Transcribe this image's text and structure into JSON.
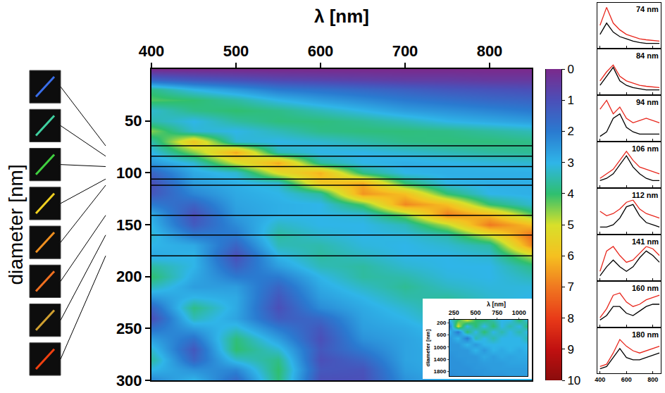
{
  "chart_data": [
    {
      "type": "heatmap",
      "x_label": "λ [nm]",
      "y_label": "diameter [nm]",
      "x": [
        400,
        450,
        500,
        550,
        600,
        650,
        700,
        750,
        800,
        850
      ],
      "y": [
        0,
        10,
        20,
        30,
        40,
        50,
        60,
        70,
        80,
        90,
        100,
        110,
        120,
        130,
        140,
        150,
        160,
        170,
        180,
        190,
        200,
        210,
        220,
        230,
        240,
        250,
        260,
        270,
        280,
        290,
        300
      ],
      "z": [
        [
          0,
          0,
          0,
          0,
          0,
          0,
          0,
          0,
          0,
          0
        ],
        [
          1.5,
          1.2,
          1.0,
          0.8,
          0.7,
          0.6,
          0.5,
          0.5,
          0.4,
          0.4
        ],
        [
          3.8,
          3.0,
          2.5,
          2.0,
          1.8,
          1.6,
          1.4,
          1.2,
          1.1,
          1.0
        ],
        [
          4.2,
          4.0,
          3.6,
          3.0,
          2.6,
          2.3,
          2.0,
          1.8,
          1.6,
          1.5
        ],
        [
          3.2,
          3.8,
          4.0,
          3.8,
          3.4,
          3.0,
          2.6,
          2.4,
          2.2,
          2.0
        ],
        [
          3.5,
          3.0,
          3.6,
          3.9,
          3.9,
          3.7,
          3.4,
          3.0,
          2.8,
          2.6
        ],
        [
          4.5,
          3.2,
          3.0,
          3.4,
          3.8,
          3.9,
          3.9,
          3.8,
          3.6,
          3.4
        ],
        [
          3.5,
          5.8,
          3.2,
          3.0,
          3.2,
          3.5,
          3.8,
          3.9,
          3.9,
          3.8
        ],
        [
          3.0,
          4.5,
          6.3,
          3.4,
          3.0,
          3.0,
          3.2,
          3.4,
          3.6,
          3.7
        ],
        [
          2.5,
          3.2,
          5.0,
          6.3,
          3.6,
          3.0,
          2.9,
          3.0,
          3.1,
          3.2
        ],
        [
          1.5,
          2.8,
          3.2,
          5.2,
          6.2,
          3.8,
          3.0,
          2.9,
          2.9,
          2.9
        ],
        [
          1.0,
          2.6,
          2.9,
          3.2,
          5.8,
          6.3,
          4.0,
          3.0,
          2.9,
          2.9
        ],
        [
          1.2,
          2.2,
          2.8,
          3.0,
          3.6,
          6.6,
          6.0,
          4.0,
          3.0,
          2.9
        ],
        [
          2.0,
          1.5,
          2.7,
          2.9,
          3.0,
          4.2,
          6.8,
          6.0,
          4.0,
          3.2
        ],
        [
          2.8,
          1.0,
          2.6,
          2.9,
          3.0,
          3.2,
          4.5,
          6.9,
          6.0,
          4.2
        ],
        [
          3.0,
          1.3,
          2.3,
          3.3,
          3.0,
          3.0,
          3.4,
          4.8,
          7.0,
          6.0
        ],
        [
          3.2,
          2.0,
          2.0,
          3.6,
          3.2,
          3.0,
          3.1,
          3.5,
          5.0,
          7.2
        ],
        [
          3.0,
          2.8,
          1.5,
          3.4,
          3.5,
          3.1,
          3.0,
          3.2,
          3.6,
          6.8
        ],
        [
          2.8,
          3.0,
          1.0,
          3.0,
          3.6,
          3.3,
          3.0,
          3.0,
          3.2,
          4.8
        ],
        [
          3.6,
          3.0,
          1.4,
          2.6,
          3.4,
          3.6,
          3.2,
          3.0,
          3.0,
          3.8
        ],
        [
          4.0,
          2.8,
          2.0,
          2.0,
          3.0,
          3.6,
          3.5,
          3.1,
          3.0,
          3.4
        ],
        [
          3.4,
          2.6,
          2.6,
          1.5,
          2.8,
          3.3,
          3.7,
          3.3,
          3.1,
          3.1
        ],
        [
          2.5,
          3.0,
          2.8,
          1.2,
          2.6,
          3.0,
          3.5,
          3.6,
          3.2,
          3.0
        ],
        [
          1.5,
          3.8,
          2.8,
          1.0,
          2.3,
          2.8,
          3.2,
          3.7,
          3.4,
          3.0
        ],
        [
          1.0,
          3.4,
          2.7,
          1.3,
          1.6,
          2.7,
          3.0,
          3.5,
          3.7,
          3.2
        ],
        [
          1.8,
          2.6,
          3.2,
          2.0,
          1.2,
          2.6,
          2.8,
          3.2,
          3.7,
          3.5
        ],
        [
          2.6,
          1.8,
          3.9,
          2.6,
          1.0,
          2.4,
          2.7,
          3.0,
          3.4,
          3.7
        ],
        [
          3.2,
          1.2,
          4.0,
          3.2,
          1.2,
          2.0,
          2.7,
          2.9,
          3.1,
          3.6
        ],
        [
          3.6,
          1.5,
          3.2,
          3.8,
          1.0,
          1.5,
          2.7,
          2.9,
          3.0,
          3.3
        ],
        [
          3.0,
          2.4,
          2.2,
          4.0,
          1.2,
          1.1,
          2.6,
          2.9,
          3.0,
          3.1
        ],
        [
          2.2,
          3.0,
          1.6,
          3.9,
          1.0,
          1.0,
          2.4,
          2.8,
          2.9,
          3.0
        ]
      ],
      "xlim": [
        400,
        850
      ],
      "xticks": [
        400,
        500,
        600,
        700,
        800
      ],
      "ylim": [
        300,
        0
      ],
      "yticks": [
        50,
        100,
        150,
        200,
        250,
        300
      ],
      "colorbar": {
        "range": [
          0,
          10
        ],
        "ticks": [
          0,
          1,
          2,
          3,
          4,
          5,
          6,
          7,
          8,
          9,
          10
        ]
      },
      "horizontal_lines": [
        74,
        84,
        94,
        106,
        112,
        141,
        160,
        180
      ]
    },
    {
      "type": "heatmap",
      "x_label": "λ [nm]",
      "y_label": "diameter [nm]",
      "x": [
        200,
        300,
        400,
        500,
        600,
        700,
        800,
        900,
        1000,
        1100
      ],
      "y": [
        100,
        300,
        500,
        700,
        900,
        1100,
        1300,
        1500,
        1700,
        1900
      ],
      "z": [
        [
          3,
          4,
          5,
          4,
          4,
          3.5,
          3,
          3,
          4,
          3
        ],
        [
          2,
          5,
          3,
          4,
          3,
          4,
          3,
          3.5,
          3,
          4
        ],
        [
          3,
          2,
          4,
          3,
          4,
          3,
          3.5,
          3,
          3.5,
          3
        ],
        [
          2.5,
          3,
          2,
          3.5,
          3,
          3.5,
          3,
          3,
          3,
          3.5
        ],
        [
          2.5,
          2.5,
          3,
          2.5,
          3,
          3,
          3,
          3,
          3,
          3
        ],
        [
          2.5,
          2.5,
          2.5,
          3,
          2.5,
          3,
          2.8,
          3,
          2.8,
          3
        ],
        [
          2.4,
          2.5,
          2.5,
          2.5,
          2.8,
          2.6,
          2.8,
          2.7,
          2.8,
          2.8
        ],
        [
          2.4,
          2.4,
          2.5,
          2.5,
          2.6,
          2.6,
          2.6,
          2.7,
          2.7,
          2.7
        ],
        [
          2.4,
          2.4,
          2.4,
          2.5,
          2.5,
          2.6,
          2.6,
          2.6,
          2.6,
          2.6
        ],
        [
          2.3,
          2.4,
          2.4,
          2.4,
          2.5,
          2.5,
          2.5,
          2.6,
          2.6,
          2.6
        ]
      ],
      "xlim": [
        200,
        1100
      ],
      "xticks": [
        250,
        500,
        750,
        1000
      ],
      "ylim": [
        1950,
        100
      ],
      "yticks": [
        200,
        600,
        1000,
        1400,
        1800
      ]
    },
    {
      "type": "line",
      "title": "74 nm",
      "x": [
        400,
        450,
        500,
        550,
        600,
        650,
        700,
        750,
        800,
        850
      ],
      "series": [
        {
          "color": "#e8261c",
          "values": [
            0.5,
            0.9,
            0.55,
            0.4,
            0.3,
            0.25,
            0.2,
            0.18,
            0.16,
            0.15
          ]
        },
        {
          "color": "#000000",
          "values": [
            0.3,
            0.55,
            0.35,
            0.25,
            0.2,
            0.15,
            0.12,
            0.1,
            0.1,
            0.1
          ]
        }
      ],
      "xlim": [
        380,
        860
      ],
      "xticks": [
        400,
        600,
        800
      ],
      "ylim": [
        0,
        1
      ],
      "tick_labels": false
    },
    {
      "type": "line",
      "title": "84 nm",
      "x": [
        400,
        450,
        500,
        550,
        600,
        650,
        700,
        750,
        800,
        850
      ],
      "series": [
        {
          "color": "#e8261c",
          "values": [
            0.3,
            0.5,
            0.65,
            0.4,
            0.3,
            0.25,
            0.2,
            0.18,
            0.16,
            0.15
          ]
        },
        {
          "color": "#000000",
          "values": [
            0.2,
            0.4,
            0.6,
            0.3,
            0.2,
            0.15,
            0.12,
            0.1,
            0.1,
            0.1
          ]
        }
      ],
      "xlim": [
        380,
        860
      ],
      "xticks": [
        400,
        600,
        800
      ],
      "ylim": [
        0,
        1
      ],
      "tick_labels": false
    },
    {
      "type": "line",
      "title": "94 nm",
      "x": [
        400,
        450,
        500,
        550,
        600,
        650,
        700,
        750,
        800,
        850
      ],
      "series": [
        {
          "color": "#e8261c",
          "values": [
            0.7,
            0.9,
            0.6,
            0.75,
            0.5,
            0.4,
            0.45,
            0.5,
            0.45,
            0.4
          ]
        },
        {
          "color": "#000000",
          "values": [
            0.1,
            0.2,
            0.5,
            0.6,
            0.3,
            0.2,
            0.15,
            0.15,
            0.15,
            0.15
          ]
        }
      ],
      "xlim": [
        380,
        860
      ],
      "xticks": [
        400,
        600,
        800
      ],
      "ylim": [
        0,
        1
      ],
      "tick_labels": false
    },
    {
      "type": "line",
      "title": "106 nm",
      "x": [
        400,
        450,
        500,
        550,
        600,
        650,
        700,
        750,
        800,
        850
      ],
      "series": [
        {
          "color": "#e8261c",
          "values": [
            0.2,
            0.3,
            0.4,
            0.6,
            0.8,
            0.6,
            0.45,
            0.4,
            0.35,
            0.3
          ]
        },
        {
          "color": "#000000",
          "values": [
            0.15,
            0.2,
            0.3,
            0.5,
            0.7,
            0.45,
            0.3,
            0.2,
            0.15,
            0.15
          ]
        }
      ],
      "xlim": [
        380,
        860
      ],
      "xticks": [
        400,
        600,
        800
      ],
      "ylim": [
        0,
        1
      ],
      "tick_labels": false
    },
    {
      "type": "line",
      "title": "112 nm",
      "x": [
        400,
        450,
        500,
        550,
        600,
        650,
        700,
        750,
        800,
        850
      ],
      "series": [
        {
          "color": "#e8261c",
          "values": [
            0.5,
            0.4,
            0.45,
            0.55,
            0.7,
            0.75,
            0.55,
            0.45,
            0.4,
            0.35
          ]
        },
        {
          "color": "#000000",
          "values": [
            0.15,
            0.15,
            0.2,
            0.35,
            0.6,
            0.65,
            0.4,
            0.25,
            0.2,
            0.15
          ]
        }
      ],
      "xlim": [
        380,
        860
      ],
      "xticks": [
        400,
        600,
        800
      ],
      "ylim": [
        0,
        1
      ],
      "tick_labels": false
    },
    {
      "type": "line",
      "title": "141 nm",
      "x": [
        400,
        450,
        500,
        550,
        600,
        650,
        700,
        750,
        800,
        850
      ],
      "series": [
        {
          "color": "#e8261c",
          "values": [
            0.2,
            0.65,
            0.75,
            0.55,
            0.4,
            0.45,
            0.6,
            0.75,
            0.7,
            0.55
          ]
        },
        {
          "color": "#000000",
          "values": [
            0.1,
            0.3,
            0.45,
            0.3,
            0.2,
            0.3,
            0.5,
            0.65,
            0.55,
            0.4
          ]
        }
      ],
      "xlim": [
        380,
        860
      ],
      "xticks": [
        400,
        600,
        800
      ],
      "ylim": [
        0,
        1
      ],
      "tick_labels": false
    },
    {
      "type": "line",
      "title": "160 nm",
      "x": [
        400,
        450,
        500,
        550,
        600,
        650,
        700,
        750,
        800,
        850
      ],
      "series": [
        {
          "color": "#e8261c",
          "values": [
            0.2,
            0.4,
            0.7,
            0.75,
            0.55,
            0.45,
            0.5,
            0.6,
            0.65,
            0.7
          ]
        },
        {
          "color": "#000000",
          "values": [
            0.15,
            0.25,
            0.45,
            0.45,
            0.3,
            0.25,
            0.35,
            0.45,
            0.5,
            0.5
          ]
        }
      ],
      "xlim": [
        380,
        860
      ],
      "xticks": [
        400,
        600,
        800
      ],
      "ylim": [
        0,
        1
      ],
      "tick_labels": false
    },
    {
      "type": "line",
      "title": "180 nm",
      "x": [
        400,
        450,
        500,
        550,
        600,
        650,
        700,
        750,
        800,
        850
      ],
      "series": [
        {
          "color": "#e8261c",
          "values": [
            0.15,
            0.2,
            0.45,
            0.75,
            0.6,
            0.5,
            0.45,
            0.5,
            0.55,
            0.6
          ]
        },
        {
          "color": "#000000",
          "values": [
            0.1,
            0.15,
            0.35,
            0.55,
            0.35,
            0.3,
            0.3,
            0.35,
            0.4,
            0.45
          ]
        }
      ],
      "xlim": [
        380,
        860
      ],
      "xticks": [
        400,
        600,
        800
      ],
      "ylim": [
        0,
        1
      ],
      "tick_labels": "x"
    }
  ]
}
